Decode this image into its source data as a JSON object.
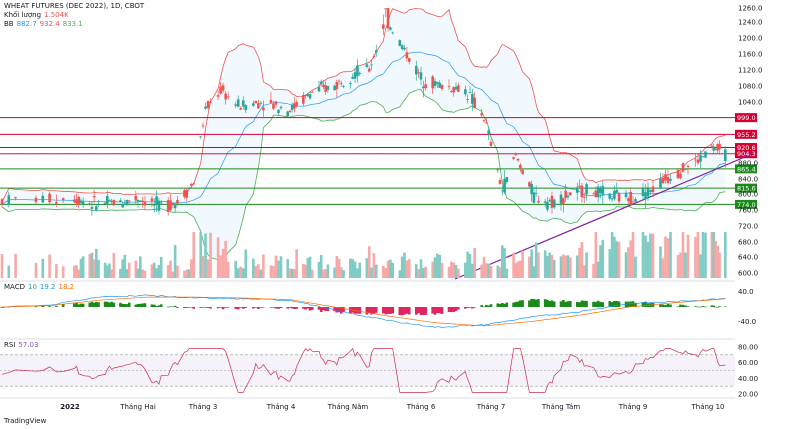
{
  "header": {
    "title": "WHEAT FUTURES (DEC 2022), 1D, CBOT",
    "volume_label": "Khối lượng",
    "volume_value": "1.504K",
    "bb_label": "BB",
    "bb_values": [
      "882.7",
      "932.4",
      "833.1"
    ]
  },
  "macd_legend": {
    "label": "MACD",
    "values": [
      "10",
      "19.2",
      "18.2"
    ]
  },
  "rsi_legend": {
    "label": "RSI",
    "value": "57.03"
  },
  "logo_text": "TradingView",
  "colors": {
    "up": "#26a69a",
    "down": "#ef5350",
    "bb_upper": "#ef5350",
    "bb_lower": "#4caf50",
    "bb_basis": "#2196f3",
    "hline_red": "#d50032",
    "hline_green": "#1b8a1b",
    "trendline": "#7b1fa2",
    "rsi_line": "#ce2b4f",
    "rsi_band": "#7e57c2"
  },
  "chart_data": [
    {
      "type": "candlestick",
      "title": "WHEAT FUTURES (DEC 2022), 1D, CBOT",
      "y_ticks": [
        "1260.0",
        "1240.0",
        "1200.0",
        "1160.0",
        "1120.0",
        "1080.0",
        "1040.0",
        "880.0",
        "840.0",
        "800.0",
        "760.0",
        "720.0",
        "680.0",
        "640.0",
        "600.0"
      ],
      "y_tick_values": [
        1260,
        1240,
        1200,
        1160,
        1120,
        1080,
        1040,
        880,
        840,
        800,
        760,
        720,
        680,
        640,
        600
      ],
      "x_ticks": [
        "2022",
        "Tháng Hai",
        "Tháng 3",
        "Tháng 4",
        "Tháng Năm",
        "Tháng 6",
        "Tháng 7",
        "Tháng Tám",
        "Tháng 9",
        "Tháng 10"
      ],
      "horizontal_levels": [
        {
          "value": 999.0,
          "label": "999.0",
          "color": "red"
        },
        {
          "value": 955.2,
          "label": "955.2",
          "color": "red"
        },
        {
          "value": 920.6,
          "label": "920.6",
          "color": "red"
        },
        {
          "value": 904.3,
          "label": "904.3",
          "color": "red"
        },
        {
          "value": 865.4,
          "label": "865.4",
          "color": "green"
        },
        {
          "value": 815.6,
          "label": "815.6",
          "color": "green"
        },
        {
          "value": 774.0,
          "label": "774.0",
          "color": "green"
        }
      ],
      "trendline": {
        "from": {
          "x": "Tháng 6",
          "y": 620
        },
        "to": {
          "x": "Tháng 10",
          "y": 880
        }
      },
      "price_path": [
        [
          "2021-12-22",
          785
        ],
        [
          "2022-01-03",
          790
        ],
        [
          "2022-01-12",
          775
        ],
        [
          "2022-01-25",
          780
        ],
        [
          "2022-02-01",
          790
        ],
        [
          "2022-02-10",
          770
        ],
        [
          "2022-02-18",
          780
        ],
        [
          "2022-02-25",
          830
        ],
        [
          "2022-03-02",
          1020
        ],
        [
          "2022-03-08",
          1070
        ],
        [
          "2022-03-15",
          1030
        ],
        [
          "2022-03-25",
          1040
        ],
        [
          "2022-04-05",
          1020
        ],
        [
          "2022-04-15",
          1065
        ],
        [
          "2022-04-25",
          1080
        ],
        [
          "2022-05-02",
          1110
        ],
        [
          "2022-05-10",
          1120
        ],
        [
          "2022-05-17",
          1250
        ],
        [
          "2022-05-24",
          1180
        ],
        [
          "2022-06-01",
          1100
        ],
        [
          "2022-06-10",
          1080
        ],
        [
          "2022-06-20",
          1070
        ],
        [
          "2022-06-28",
          1000
        ],
        [
          "2022-07-06",
          810
        ],
        [
          "2022-07-12",
          900
        ],
        [
          "2022-07-20",
          795
        ],
        [
          "2022-07-28",
          780
        ],
        [
          "2022-08-05",
          800
        ],
        [
          "2022-08-12",
          810
        ],
        [
          "2022-08-22",
          795
        ],
        [
          "2022-08-30",
          790
        ],
        [
          "2022-09-08",
          810
        ],
        [
          "2022-09-16",
          850
        ],
        [
          "2022-09-26",
          880
        ],
        [
          "2022-10-03",
          920
        ],
        [
          "2022-10-10",
          905
        ]
      ]
    },
    {
      "type": "bar",
      "title": "Khối lượng",
      "y_ticks": [
        "720.0",
        "680.0",
        "640.0",
        "600.0"
      ]
    },
    {
      "type": "line",
      "title": "MACD",
      "y_ticks": [
        "40.0",
        "-40.0"
      ],
      "series": [
        {
          "name": "MACD",
          "values_sample": [
            0,
            5,
            22,
            26,
            20,
            18,
            15,
            -10,
            -30,
            -45,
            -40,
            -22,
            -10,
            8,
            12,
            19
          ]
        },
        {
          "name": "Signal",
          "values_sample": [
            0,
            3,
            15,
            22,
            22,
            20,
            16,
            -2,
            -20,
            -35,
            -42,
            -32,
            -18,
            0,
            10,
            18
          ]
        }
      ]
    },
    {
      "type": "line",
      "title": "RSI",
      "y_ticks": [
        "80.00",
        "60.00",
        "40.00",
        "20.00"
      ],
      "band": [
        30,
        70
      ],
      "last": 57.03
    }
  ]
}
